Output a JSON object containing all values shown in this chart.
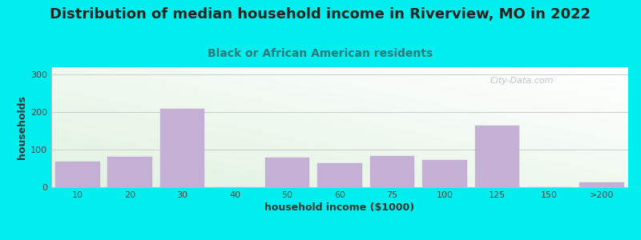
{
  "title": "Distribution of median household income in Riverview, MO in 2022",
  "subtitle": "Black or African American residents",
  "xlabel": "household income ($1000)",
  "ylabel": "households",
  "background_outer": "#00EEEE",
  "bar_color": "#C4B0D5",
  "bar_edge_color": "#C4B0D5",
  "categories": [
    "10",
    "20",
    "30",
    "40",
    "50",
    "60",
    "75",
    "100",
    "125",
    "150",
    ">200"
  ],
  "values": [
    68,
    82,
    210,
    0,
    78,
    63,
    83,
    73,
    165,
    0,
    13
  ],
  "yticks": [
    0,
    100,
    200,
    300
  ],
  "ylim": [
    0,
    320
  ],
  "watermark": "City-Data.com",
  "title_fontsize": 13,
  "subtitle_fontsize": 10,
  "axis_label_fontsize": 9,
  "tick_fontsize": 8,
  "subtitle_color": "#2a7a7a",
  "title_color": "#222222",
  "tick_color": "#444444",
  "label_color": "#333333"
}
